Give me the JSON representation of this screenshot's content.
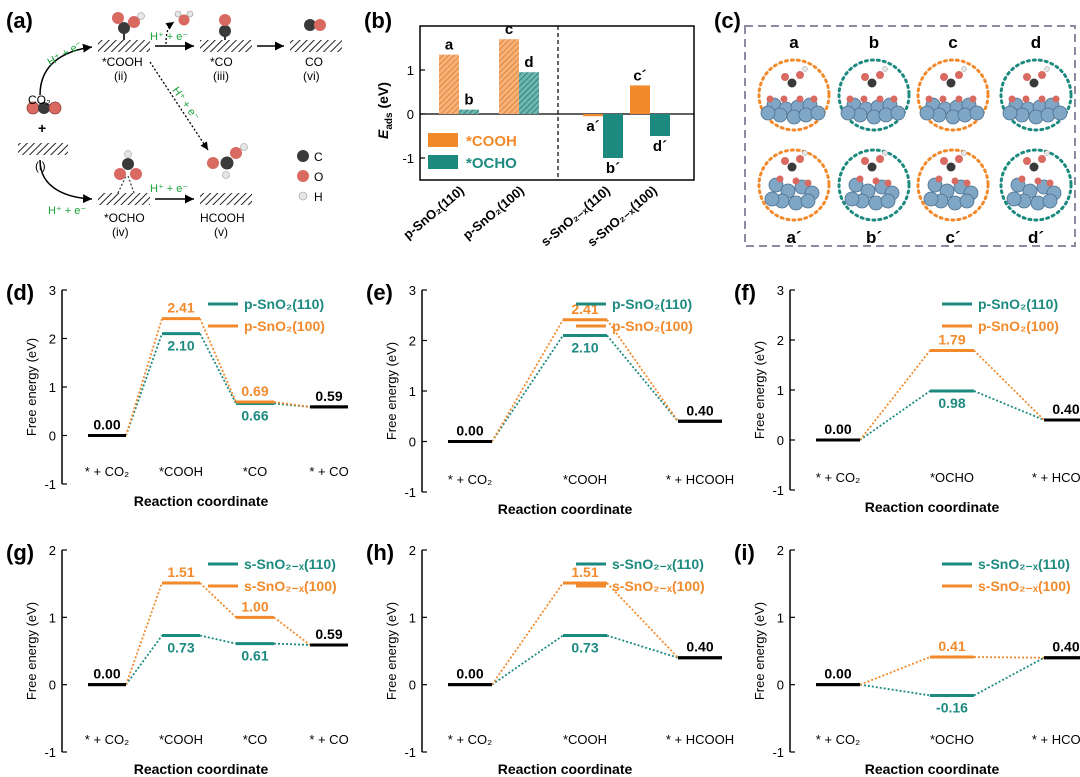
{
  "colors": {
    "teal": "#1d8a80",
    "orange": "#f28a2c",
    "black": "#000000",
    "sn": "#7fa6c4",
    "o": "#d86a62",
    "c": "#3a3a3a",
    "h": "#e6e6e6"
  },
  "panel_a": {
    "tag": "(a)",
    "co2": "CO₂",
    "plus": "+",
    "steps": [
      "(i)",
      "*COOH",
      "(ii)",
      "*CO",
      "(iii)",
      "CO",
      "(vi)",
      "*OCHO",
      "(iv)",
      "HCOOH",
      "(v)"
    ],
    "arrow_label": "H⁺ + e⁻",
    "legend": [
      "C",
      "O",
      "H"
    ]
  },
  "panel_c": {
    "tag": "(c)",
    "top_labels": [
      "a",
      "b",
      "c",
      "d"
    ],
    "bottom_labels": [
      "a´",
      "b´",
      "c´",
      "d´"
    ]
  },
  "chart_data": [
    {
      "panel": "(b)",
      "type": "bar",
      "ylabel_main": "E",
      "ylabel_sub": "ads",
      "ylabel_unit": " (eV)",
      "ylim": [
        -1.5,
        2.0
      ],
      "yticks": [
        "-1",
        "0",
        "1"
      ],
      "categories": [
        "p-SnO₂(110)",
        "p-SnO₂(100)",
        "s-SnO₂₋ₓ(110)",
        "s-SnO₂₋ₓ(100)"
      ],
      "series": [
        {
          "name": "*COOH",
          "values": [
            1.35,
            1.7,
            -0.05,
            0.65
          ],
          "labels": [
            "a",
            "c",
            "a´",
            "c´"
          ]
        },
        {
          "name": "*OCHO",
          "values": [
            0.1,
            0.95,
            -1.0,
            -0.5
          ],
          "labels": [
            "b",
            "d",
            "b´",
            "d´"
          ]
        }
      ]
    },
    {
      "panel": "(d)",
      "type": "line",
      "ylim": [
        -1,
        3
      ],
      "yticks": [
        "-1",
        "0",
        "1",
        "2",
        "3"
      ],
      "ylabel": "Free energy (eV)",
      "xlabel": "Reaction coordinate",
      "steps": [
        "* + CO₂",
        "*COOH",
        "*CO",
        "* + CO"
      ],
      "series": [
        {
          "name": "p-SnO₂(110)",
          "values": [
            0.0,
            2.1,
            0.66,
            0.59
          ],
          "labels": [
            "0.00",
            "2.10",
            "0.66",
            "0.59"
          ]
        },
        {
          "name": "p-SnO₂(100)",
          "values": [
            0.0,
            2.41,
            0.69,
            0.59
          ],
          "labels": [
            "",
            "2.41",
            "0.69",
            ""
          ]
        }
      ]
    },
    {
      "panel": "(e)",
      "type": "line",
      "ylim": [
        -1,
        3
      ],
      "yticks": [
        "-1",
        "0",
        "1",
        "2",
        "3"
      ],
      "ylabel": "Free energy (eV)",
      "xlabel": "Reaction coordinate",
      "steps": [
        "* + CO₂",
        "*COOH",
        "* + HCOOH"
      ],
      "series": [
        {
          "name": "p-SnO₂(110)",
          "values": [
            0.0,
            2.1,
            0.4
          ],
          "labels": [
            "0.00",
            "2.10",
            "0.40"
          ]
        },
        {
          "name": "p-SnO₂(100)",
          "values": [
            0.0,
            2.41,
            0.4
          ],
          "labels": [
            "",
            "2.41",
            ""
          ]
        }
      ]
    },
    {
      "panel": "(f)",
      "type": "line",
      "ylim": [
        -1,
        3
      ],
      "yticks": [
        "-1",
        "0",
        "1",
        "2",
        "3"
      ],
      "ylabel": "Free energy (eV)",
      "xlabel": "Reaction coordinate",
      "steps": [
        "* + CO₂",
        "*OCHO",
        "* + HCOOH"
      ],
      "series": [
        {
          "name": "p-SnO₂(110)",
          "values": [
            0.0,
            0.98,
            0.4
          ],
          "labels": [
            "0.00",
            "0.98",
            "0.40"
          ]
        },
        {
          "name": "p-SnO₂(100)",
          "values": [
            0.0,
            1.79,
            0.4
          ],
          "labels": [
            "",
            "1.79",
            ""
          ]
        }
      ]
    },
    {
      "panel": "(g)",
      "type": "line",
      "ylim": [
        -1,
        2
      ],
      "yticks": [
        "-1",
        "0",
        "1",
        "2"
      ],
      "ylabel": "Free energy (eV)",
      "xlabel": "Reaction coordinate",
      "steps": [
        "* + CO₂",
        "*COOH",
        "*CO",
        "* + CO"
      ],
      "series": [
        {
          "name": "s-SnO₂₋ₓ(110)",
          "values": [
            0.0,
            0.73,
            0.61,
            0.59
          ],
          "labels": [
            "0.00",
            "0.73",
            "0.61",
            "0.59"
          ]
        },
        {
          "name": "s-SnO₂₋ₓ(100)",
          "values": [
            0.0,
            1.51,
            1.0,
            0.59
          ],
          "labels": [
            "",
            "1.51",
            "1.00",
            ""
          ]
        }
      ]
    },
    {
      "panel": "(h)",
      "type": "line",
      "ylim": [
        -1,
        2
      ],
      "yticks": [
        "-1",
        "0",
        "1",
        "2"
      ],
      "ylabel": "Free energy (eV)",
      "xlabel": "Reaction coordinate",
      "steps": [
        "* + CO₂",
        "*COOH",
        "* + HCOOH"
      ],
      "series": [
        {
          "name": "s-SnO₂₋ₓ(110)",
          "values": [
            0.0,
            0.73,
            0.4
          ],
          "labels": [
            "0.00",
            "0.73",
            "0.40"
          ]
        },
        {
          "name": "s-SnO₂₋ₓ(100)",
          "values": [
            0.0,
            1.51,
            0.4
          ],
          "labels": [
            "",
            "1.51",
            ""
          ]
        }
      ]
    },
    {
      "panel": "(i)",
      "type": "line",
      "ylim": [
        -1,
        2
      ],
      "yticks": [
        "-1",
        "0",
        "1",
        "2"
      ],
      "ylabel": "Free energy (eV)",
      "xlabel": "Reaction coordinate",
      "steps": [
        "* + CO₂",
        "*OCHO",
        "* + HCOOH"
      ],
      "series": [
        {
          "name": "s-SnO₂₋ₓ(110)",
          "values": [
            0.0,
            -0.16,
            0.4
          ],
          "labels": [
            "0.00",
            "-0.16",
            "0.40"
          ]
        },
        {
          "name": "s-SnO₂₋ₓ(100)",
          "values": [
            0.0,
            0.41,
            0.4
          ],
          "labels": [
            "",
            "0.41",
            ""
          ]
        }
      ]
    }
  ]
}
